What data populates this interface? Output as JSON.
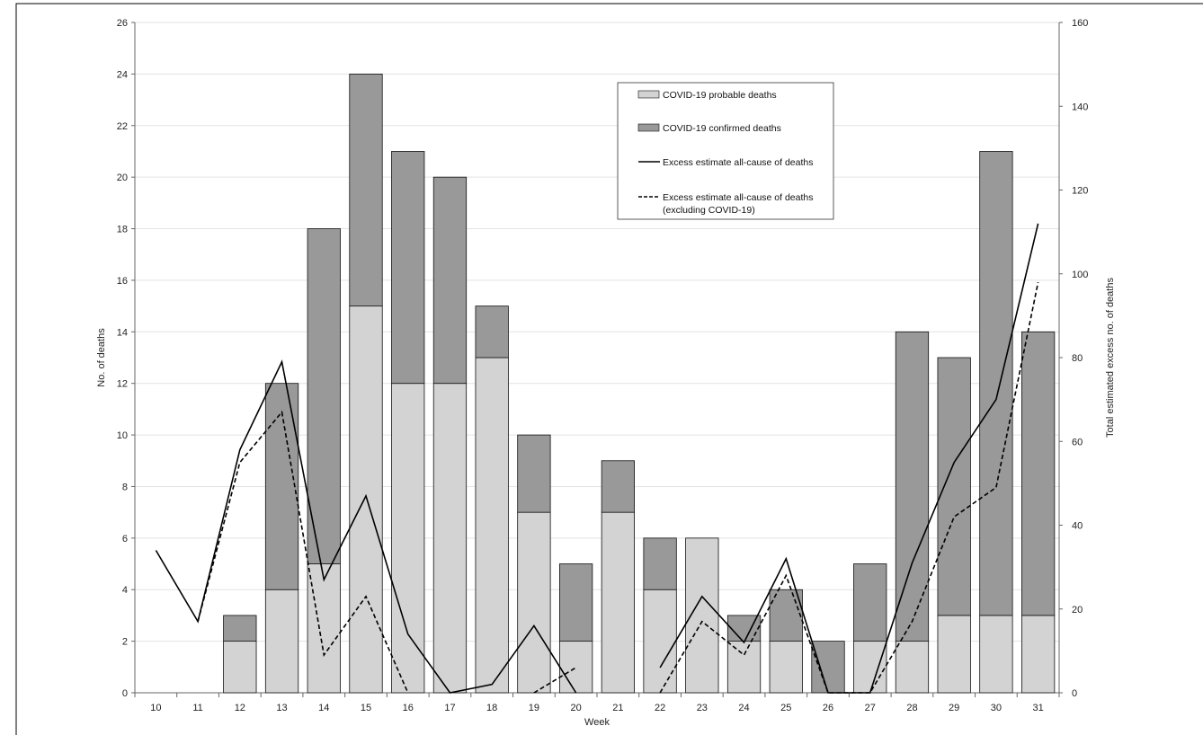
{
  "chart_data": {
    "type": "bar",
    "stacked": true,
    "categories": [
      "10",
      "11",
      "12",
      "13",
      "14",
      "15",
      "16",
      "17",
      "18",
      "19",
      "20",
      "21",
      "22",
      "23",
      "24",
      "25",
      "26",
      "27",
      "28",
      "29",
      "30",
      "31"
    ],
    "series": [
      {
        "name": "COVID-19 probable deaths",
        "kind": "bar",
        "axis": "left",
        "color": "#d3d3d3",
        "values": [
          0,
          0,
          2,
          4,
          5,
          15,
          12,
          12,
          13,
          7,
          2,
          7,
          4,
          6,
          2,
          2,
          0,
          2,
          2,
          3,
          3,
          3
        ]
      },
      {
        "name": "COVID-19 confirmed deaths",
        "kind": "bar",
        "axis": "left",
        "color": "#999999",
        "values": [
          0,
          0,
          1,
          8,
          13,
          9,
          9,
          8,
          2,
          3,
          3,
          2,
          2,
          0,
          1,
          2,
          2,
          3,
          12,
          10,
          18,
          11
        ]
      },
      {
        "name": "Excess estimate all-cause of deaths",
        "kind": "line",
        "axis": "right",
        "dash": "solid",
        "color": "#000000",
        "values": [
          34,
          17,
          58,
          79,
          27,
          47,
          14,
          0,
          2,
          16,
          0,
          null,
          6,
          23,
          12,
          32,
          0,
          0,
          31,
          55,
          70,
          112
        ]
      },
      {
        "name": "Excess estimate all-cause of deaths (excluding COVID-19)",
        "kind": "line",
        "axis": "right",
        "dash": "dashed",
        "color": "#000000",
        "values": [
          null,
          17,
          55,
          67,
          9,
          23,
          0,
          null,
          null,
          0,
          6,
          null,
          0,
          17,
          9,
          28,
          0,
          0,
          17,
          42,
          49,
          98
        ]
      }
    ],
    "xlabel": "Week",
    "ylabel": "No. of deaths",
    "y2label": "Total estimated excess no. of deaths",
    "ylim": [
      0,
      26
    ],
    "y2lim": [
      0,
      160
    ],
    "yticks": [
      0,
      2,
      4,
      6,
      8,
      10,
      12,
      14,
      16,
      18,
      20,
      22,
      24,
      26
    ],
    "y2ticks": [
      0,
      20,
      40,
      60,
      80,
      100,
      120,
      140,
      160
    ],
    "grid": true,
    "legend_position": "top-center"
  }
}
